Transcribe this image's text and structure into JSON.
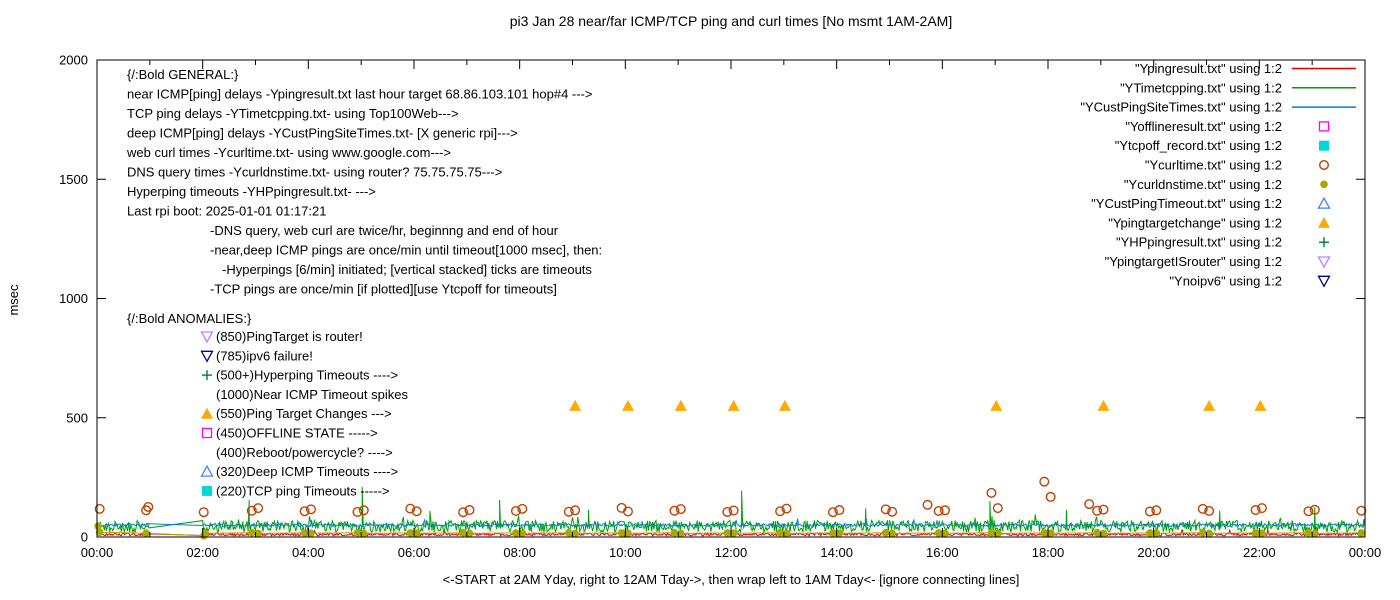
{
  "title": "pi3 Jan 28  near/far ICMP/TCP ping and curl times [No msmt 1AM-2AM]",
  "axes": {
    "ylabel": "msec",
    "xlabel_caption": "<-START at 2AM Yday, right to 12AM Tday->, then wrap left to 1AM Tday<- [ignore connecting lines]"
  },
  "legend": {
    "items": [
      {
        "label": "\"Ypingresult.txt\" using 1:2",
        "sample": "line",
        "color": "#e60000"
      },
      {
        "label": "\"YTimetcpping.txt\" using 1:2",
        "sample": "line",
        "color": "#00a000"
      },
      {
        "label": "\"YCustPingSiteTimes.txt\" using 1:2",
        "sample": "line",
        "color": "#0080d0"
      },
      {
        "label": "\"Yofflineresult.txt\" using 1:2",
        "sample": "square-open",
        "color": "#ff00ff"
      },
      {
        "label": "\"Ytcpoff_record.txt\" using 1:2",
        "sample": "square-filled",
        "color": "#00d8d8"
      },
      {
        "label": "\"Ycurltime.txt\" using 1:2",
        "sample": "circle-open",
        "color": "#c04000"
      },
      {
        "label": "\"Ycurldnstime.txt\" using 1:2",
        "sample": "circle-filled",
        "color": "#a8a800"
      },
      {
        "label": "\"YCustPingTimeout.txt\" using 1:2",
        "sample": "triangle-up-open",
        "color": "#4080ff"
      },
      {
        "label": "\"Ypingtargetchange\" using 1:2",
        "sample": "triangle-up-filled",
        "color": "#ffaa00"
      },
      {
        "label": "\"YHPpingresult.txt\" using 1:2",
        "sample": "plus",
        "color": "#007a40"
      },
      {
        "label": "\"YpingtargetISrouter\" using 1:2",
        "sample": "triangle-down-open",
        "color": "#bf80ff"
      },
      {
        "label": "\"Ynoipv6\" using 1:2",
        "sample": "triangle-down-open",
        "color": "#000090"
      }
    ]
  },
  "annotations": {
    "general": {
      "heading": "{/:Bold GENERAL:}",
      "lines": [
        {
          "indent": 0,
          "text": "near ICMP[ping] delays -Ypingresult.txt last hour target 68.86.103.101 hop#4 --->"
        },
        {
          "indent": 0,
          "text": "TCP ping delays -YTimetcpping.txt- using Top100Web--->"
        },
        {
          "indent": 0,
          "text": "deep ICMP[ping] delays -YCustPingSiteTimes.txt- [X generic rpi]--->"
        },
        {
          "indent": 0,
          "text": "web curl times -Ycurltime.txt- using www.google.com--->"
        },
        {
          "indent": 0,
          "text": "DNS query times -Ycurldnstime.txt- using router? 75.75.75.75--->"
        },
        {
          "indent": 0,
          "text": "Hyperping timeouts -YHPpingresult.txt- --->"
        },
        {
          "indent": 0,
          "text": "Last rpi boot: 2025-01-01 01:17:21"
        },
        {
          "indent": 1,
          "text": "-DNS query, web curl are twice/hr, beginnng and end of hour"
        },
        {
          "indent": 1,
          "text": "-near,deep ICMP pings are once/min until timeout[1000 msec], then:"
        },
        {
          "indent": 2,
          "text": "-Hyperpings [6/min] initiated; [vertical stacked] ticks are timeouts"
        },
        {
          "indent": 1,
          "text": "-TCP pings are once/min [if plotted][use Ytcpoff for timeouts]"
        }
      ]
    },
    "anomalies": {
      "heading": "{/:Bold ANOMALIES:}",
      "items": [
        {
          "marker": "triangle-down-open",
          "color": "#bf80ff",
          "text": "(850)PingTarget is router!"
        },
        {
          "marker": "triangle-down-open",
          "color": "#000090",
          "text": "(785)ipv6 failure!"
        },
        {
          "marker": "plus",
          "color": "#007a40",
          "text": "(500+)Hyperping Timeouts ---->"
        },
        {
          "marker": null,
          "color": null,
          "text": "(1000)Near ICMP Timeout spikes"
        },
        {
          "marker": "triangle-up-filled",
          "color": "#ffaa00",
          "text": "(550)Ping Target Changes --->"
        },
        {
          "marker": "square-open",
          "color": "#ff00ff",
          "text": "(450)OFFLINE STATE ----->"
        },
        {
          "marker": null,
          "color": null,
          "text": "(400)Reboot/powercycle? ---->"
        },
        {
          "marker": "triangle-up-open",
          "color": "#4080ff",
          "text": "(320)Deep ICMP Timeouts ---->"
        },
        {
          "marker": "square-filled",
          "color": "#00d8d8",
          "text": "(220)TCP ping Timeouts ----->"
        }
      ]
    }
  },
  "chart_data": {
    "type": "line",
    "x_unit": "hours",
    "xlim": [
      0,
      24
    ],
    "ylim": [
      0,
      2000
    ],
    "gap_hours": [
      1,
      2
    ],
    "x_tick_labels": [
      "00:00",
      "02:00",
      "04:00",
      "06:00",
      "08:00",
      "10:00",
      "12:00",
      "14:00",
      "16:00",
      "18:00",
      "20:00",
      "22:00",
      "00:00"
    ],
    "y_tick_values": [
      0,
      500,
      1000,
      1500,
      2000
    ],
    "series": [
      {
        "name": "Ypingresult.txt",
        "style": "line",
        "color": "#e60000",
        "base": 5,
        "amp": 12,
        "spike_chance": 0.01,
        "spike_max": 25,
        "spikes": []
      },
      {
        "name": "YTimetcpping.txt",
        "style": "line",
        "color": "#00a000",
        "base": 20,
        "amp": 50,
        "spike_chance": 0.025,
        "spike_max": 40,
        "spikes": [
          [
            2.88,
            155
          ],
          [
            5.02,
            210
          ],
          [
            6.3,
            110
          ],
          [
            7.62,
            155
          ],
          [
            9.3,
            115
          ],
          [
            12.2,
            195
          ],
          [
            14.55,
            120
          ],
          [
            16.9,
            150
          ],
          [
            18.35,
            115
          ],
          [
            21.25,
            110
          ],
          [
            23.05,
            125
          ]
        ]
      },
      {
        "name": "YCustPingSiteTimes.txt",
        "style": "line",
        "color": "#0080d0",
        "base": 44,
        "amp": 12,
        "spike_chance": 0.01,
        "spike_max": 25,
        "spikes": []
      },
      {
        "name": "Yofflineresult.txt",
        "style": "scatter",
        "marker": "square-open",
        "color": "#ff00ff",
        "points": []
      },
      {
        "name": "Ytcpoff_record.txt",
        "style": "scatter",
        "marker": "square-filled",
        "color": "#00d8d8",
        "points": []
      },
      {
        "name": "Ycurltime.txt",
        "style": "scatter",
        "marker": "circle-open",
        "color": "#c04000",
        "points": [
          [
            0.05,
            118
          ],
          [
            0.93,
            112
          ],
          [
            0.97,
            126
          ],
          [
            2.02,
            104
          ],
          [
            2.93,
            110
          ],
          [
            3.05,
            121
          ],
          [
            3.93,
            108
          ],
          [
            4.05,
            116
          ],
          [
            4.93,
            105
          ],
          [
            5.05,
            112
          ],
          [
            5.93,
            119
          ],
          [
            6.05,
            108
          ],
          [
            6.93,
            104
          ],
          [
            7.05,
            113
          ],
          [
            7.93,
            109
          ],
          [
            8.05,
            118
          ],
          [
            8.93,
            106
          ],
          [
            9.05,
            112
          ],
          [
            9.93,
            122
          ],
          [
            10.05,
            107
          ],
          [
            10.93,
            110
          ],
          [
            11.05,
            117
          ],
          [
            11.93,
            105
          ],
          [
            12.05,
            111
          ],
          [
            12.93,
            108
          ],
          [
            13.05,
            119
          ],
          [
            13.93,
            104
          ],
          [
            14.05,
            113
          ],
          [
            14.93,
            116
          ],
          [
            15.05,
            106
          ],
          [
            15.72,
            135
          ],
          [
            15.93,
            109
          ],
          [
            16.05,
            112
          ],
          [
            16.93,
            185
          ],
          [
            17.05,
            121
          ],
          [
            17.93,
            232
          ],
          [
            18.05,
            168
          ],
          [
            18.78,
            138
          ],
          [
            18.93,
            110
          ],
          [
            19.05,
            115
          ],
          [
            19.93,
            107
          ],
          [
            20.05,
            112
          ],
          [
            20.93,
            118
          ],
          [
            21.05,
            109
          ],
          [
            21.93,
            113
          ],
          [
            22.05,
            121
          ],
          [
            22.93,
            108
          ],
          [
            23.05,
            114
          ],
          [
            23.93,
            110
          ]
        ]
      },
      {
        "name": "Ycurldnstime.txt",
        "style": "scatter-line",
        "marker": "circle-filled",
        "color": "#a8a800",
        "points": [
          [
            0.02,
            46
          ],
          [
            0.05,
            20
          ],
          [
            0.93,
            16
          ],
          [
            2.02,
            5
          ],
          [
            2.05,
            16
          ],
          [
            2.93,
            18
          ],
          [
            3.05,
            15
          ],
          [
            3.93,
            17
          ],
          [
            4.05,
            16
          ],
          [
            4.93,
            18
          ],
          [
            5.05,
            15
          ],
          [
            5.93,
            17
          ],
          [
            6.05,
            16
          ],
          [
            6.93,
            18
          ],
          [
            7.05,
            15
          ],
          [
            7.93,
            17
          ],
          [
            8.05,
            16
          ],
          [
            8.93,
            18
          ],
          [
            9.05,
            15
          ],
          [
            9.93,
            17
          ],
          [
            10.05,
            16
          ],
          [
            10.93,
            18
          ],
          [
            11.05,
            15
          ],
          [
            11.93,
            17
          ],
          [
            12.05,
            16
          ],
          [
            12.93,
            18
          ],
          [
            13.05,
            15
          ],
          [
            13.93,
            17
          ],
          [
            14.05,
            16
          ],
          [
            14.93,
            18
          ],
          [
            15.05,
            15
          ],
          [
            15.93,
            17
          ],
          [
            16.05,
            16
          ],
          [
            16.93,
            18
          ],
          [
            17.05,
            15
          ],
          [
            17.93,
            17
          ],
          [
            18.05,
            16
          ],
          [
            18.93,
            18
          ],
          [
            19.05,
            15
          ],
          [
            19.93,
            17
          ],
          [
            20.05,
            16
          ],
          [
            20.93,
            18
          ],
          [
            21.05,
            15
          ],
          [
            21.93,
            17
          ],
          [
            22.05,
            16
          ],
          [
            22.93,
            18
          ],
          [
            23.05,
            15
          ],
          [
            23.93,
            17
          ]
        ]
      },
      {
        "name": "YCustPingTimeout.txt",
        "style": "scatter",
        "marker": "triangle-up-open",
        "color": "#4080ff",
        "points": []
      },
      {
        "name": "Ypingtargetchange",
        "style": "scatter",
        "marker": "triangle-up-filled",
        "color": "#ffaa00",
        "points": [
          [
            9.05,
            550
          ],
          [
            10.05,
            550
          ],
          [
            11.05,
            550
          ],
          [
            12.05,
            550
          ],
          [
            13.02,
            550
          ],
          [
            17.02,
            550
          ],
          [
            19.05,
            550
          ],
          [
            21.05,
            550
          ],
          [
            22.02,
            550
          ]
        ]
      },
      {
        "name": "YHPpingresult.txt",
        "style": "scatter",
        "marker": "plus",
        "color": "#007a40",
        "points": []
      },
      {
        "name": "YpingtargetISrouter",
        "style": "scatter",
        "marker": "triangle-down-open",
        "color": "#bf80ff",
        "points": []
      },
      {
        "name": "Ynoipv6",
        "style": "scatter",
        "marker": "triangle-down-open",
        "color": "#000090",
        "points": []
      }
    ]
  }
}
